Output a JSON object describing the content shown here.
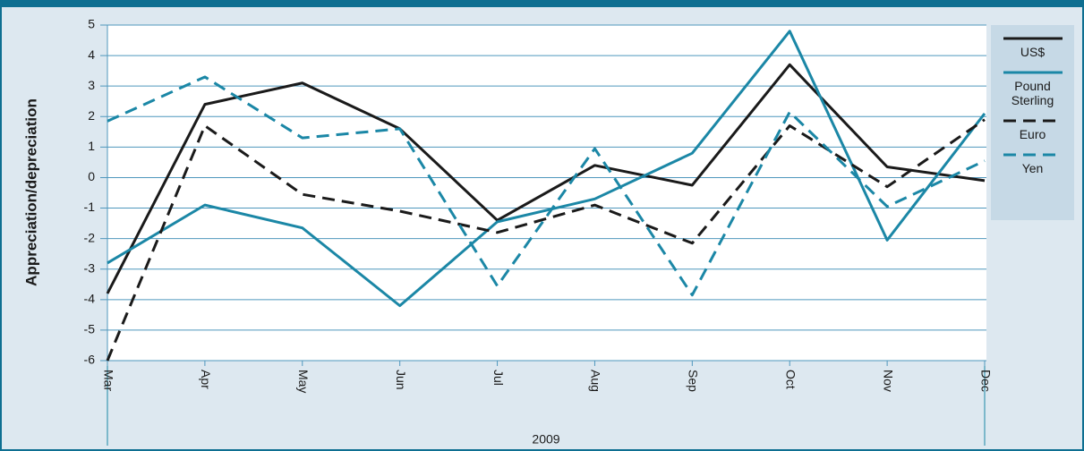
{
  "chart_data": {
    "type": "line",
    "ylabel": "Appreciation/depreciation",
    "xlabel": "2009",
    "categories": [
      "Mar",
      "Apr",
      "May",
      "Jun",
      "Jul",
      "Aug",
      "Sep",
      "Oct",
      "Nov",
      "Dec"
    ],
    "series": [
      {
        "name": "US$",
        "color": "#1a1a1a",
        "dash": false,
        "values": [
          -3.8,
          2.4,
          3.1,
          1.6,
          -1.4,
          0.4,
          -0.25,
          3.7,
          0.35,
          -0.1
        ]
      },
      {
        "name": "Pound Sterling",
        "color": "#1b87a6",
        "dash": false,
        "values": [
          -2.8,
          -0.9,
          -1.65,
          -4.2,
          -1.45,
          -0.7,
          0.8,
          4.8,
          -2.05,
          2.1
        ]
      },
      {
        "name": "Euro",
        "color": "#1a1a1a",
        "dash": true,
        "values": [
          -6,
          1.7,
          -0.55,
          -1.1,
          -1.8,
          -0.9,
          -2.15,
          1.7,
          -0.3,
          1.9
        ]
      },
      {
        "name": "Yen",
        "color": "#1b87a6",
        "dash": true,
        "values": [
          1.85,
          3.3,
          1.3,
          1.6,
          -3.55,
          0.95,
          -3.85,
          2.15,
          -0.95,
          0.55
        ]
      }
    ],
    "ylim": [
      -6,
      5
    ],
    "yticks": [
      -6,
      -5,
      -4,
      -3,
      -2,
      -1,
      0,
      1,
      2,
      3,
      4,
      5
    ],
    "grid": true,
    "legend": "right"
  }
}
